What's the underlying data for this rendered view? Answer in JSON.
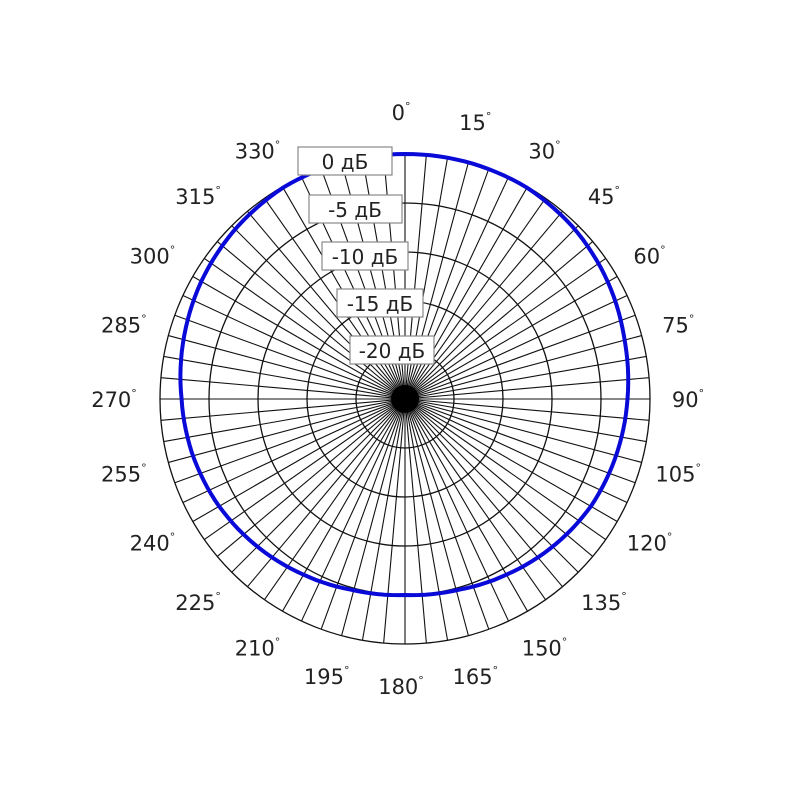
{
  "chart_data": {
    "type": "polar-line",
    "title": "",
    "angle_unit": "°",
    "angle_ticks": [
      0,
      15,
      30,
      45,
      60,
      75,
      90,
      105,
      120,
      135,
      150,
      165,
      180,
      195,
      210,
      225,
      240,
      255,
      270,
      285,
      300,
      315,
      330
    ],
    "radial_range": [
      -25,
      0
    ],
    "radial_ticks": [
      {
        "value": 0,
        "label": "0 дБ"
      },
      {
        "value": -5,
        "label": "-5 дБ"
      },
      {
        "value": -10,
        "label": "-10 дБ"
      },
      {
        "value": -15,
        "label": "-15 дБ"
      },
      {
        "value": -20,
        "label": "-20 дБ"
      }
    ],
    "grid": true,
    "spoke_step_deg": 5,
    "series": [
      {
        "color": "#0a0ad8",
        "angles": [
          0,
          15,
          30,
          45,
          60,
          75,
          90,
          105,
          120,
          135,
          150,
          165,
          180,
          195,
          210,
          225,
          240,
          255,
          270,
          285,
          300,
          315,
          330,
          345
        ],
        "values": [
          0,
          0,
          -0.1,
          -0.5,
          -1.1,
          -1.8,
          -2.3,
          -2.7,
          -3.1,
          -3.7,
          -4.3,
          -4.8,
          -5.0,
          -4.8,
          -4.3,
          -3.7,
          -3.1,
          -2.6,
          -2.2,
          -1.6,
          -1.0,
          -0.5,
          -0.1,
          0
        ]
      }
    ]
  }
}
